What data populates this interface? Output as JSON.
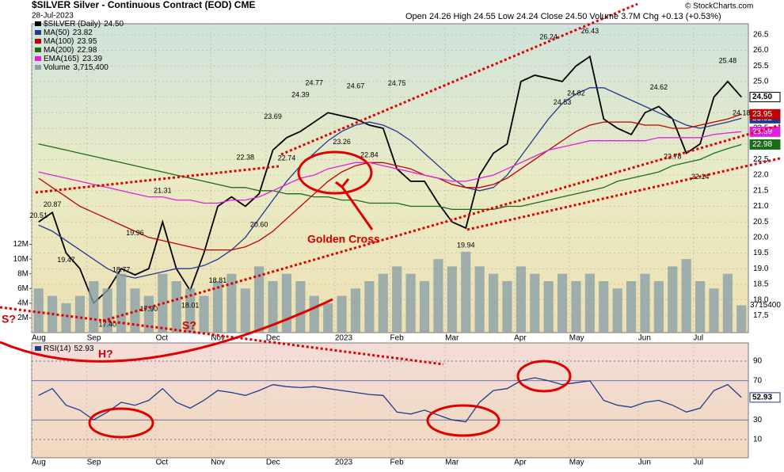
{
  "header": {
    "title": "$SILVER Silver - Continuous Contract (EOD) CME",
    "date": "28-Jul-2023",
    "ohlc": "Open 24.26 High 24.55 Low 24.24 Close 24.50 Volume 3.7M Chg +0.13 (+0.53%)",
    "source": "© StockCharts.com"
  },
  "annotations": [
    "Golden Cross",
    "S?",
    "S?",
    "H?"
  ],
  "chart_data": [
    {
      "type": "line",
      "categories": [
        "Aug",
        null,
        null,
        null,
        "Sep",
        null,
        null,
        null,
        null,
        "Oct",
        null,
        null,
        null,
        "Nov",
        null,
        null,
        null,
        "Dec",
        null,
        null,
        null,
        null,
        "2023",
        null,
        null,
        null,
        "Feb",
        null,
        null,
        null,
        "Mar",
        null,
        null,
        null,
        null,
        "Apr",
        null,
        null,
        null,
        "May",
        null,
        null,
        null,
        null,
        "Jun",
        null,
        null,
        null,
        "Jul",
        null,
        null,
        null
      ],
      "ylim": [
        16.95,
        26.85
      ],
      "yticks": [
        17.5,
        {
          "value": 18,
          "label": "18.0"
        },
        18.5,
        {
          "value": 19,
          "label": "19.0"
        },
        19.5,
        {
          "value": 20,
          "label": "20.0"
        },
        20.5,
        {
          "value": 21,
          "label": "21.0"
        },
        21.5,
        {
          "value": 22,
          "label": "22.0"
        },
        22.5,
        {
          "value": 23,
          "label": "23.0"
        },
        23.5,
        {
          "value": 24,
          "label": "24.0"
        },
        24.5,
        {
          "value": 25,
          "label": "25.0"
        },
        25.5,
        {
          "value": 26,
          "label": "26.0"
        },
        26.5
      ],
      "y2lim": [
        0,
        42000000
      ],
      "y2ticks": [
        {
          "value": 2000000,
          "label": "2M"
        },
        {
          "value": 4000000,
          "label": "4M"
        },
        {
          "value": 6000000,
          "label": "6M"
        },
        {
          "value": 8000000,
          "label": "8M"
        },
        {
          "value": 10000000,
          "label": "10M"
        },
        {
          "value": 12000000,
          "label": "12M"
        }
      ],
      "grid": true,
      "series": [
        {
          "name": "$SILVER (Daily)",
          "color": "#000000",
          "values": [
            20.5,
            20.8,
            19.5,
            19.0,
            17.9,
            18.3,
            19.0,
            18.8,
            19.0,
            20.5,
            19.0,
            18.3,
            19.5,
            21.0,
            21.3,
            21.0,
            21.4,
            22.8,
            23.2,
            23.4,
            23.7,
            24.0,
            23.9,
            23.8,
            23.6,
            23.5,
            22.2,
            21.8,
            21.8,
            21.1,
            20.5,
            20.3,
            22.0,
            22.7,
            23.0,
            25.0,
            25.2,
            25.1,
            25.0,
            25.5,
            25.8,
            23.8,
            23.5,
            23.3,
            24.0,
            24.2,
            23.8,
            22.7,
            23.0,
            24.5,
            25.0,
            24.5
          ],
          "value_labels": [
            null,
            null,
            null,
            null,
            null,
            null,
            null,
            null,
            null,
            null,
            null,
            null,
            null,
            null,
            null,
            null,
            null,
            null,
            null,
            null,
            null,
            null,
            null,
            null,
            null,
            null,
            null,
            null,
            null,
            null,
            null,
            null,
            null,
            null,
            null,
            null,
            null,
            null,
            null,
            null,
            null,
            null,
            null,
            null,
            null,
            null,
            null,
            null,
            null,
            null,
            null,
            "24.50"
          ]
        },
        {
          "name": "MA(50)",
          "color": "#1f3a8f",
          "values": [
            20.4,
            20.2,
            19.9,
            19.6,
            19.3,
            19.0,
            18.8,
            18.7,
            18.8,
            18.9,
            19.0,
            19.0,
            19.1,
            19.3,
            19.6,
            20.0,
            20.6,
            21.2,
            21.8,
            22.3,
            22.7,
            23.1,
            23.4,
            23.6,
            23.7,
            23.6,
            23.4,
            23.1,
            22.7,
            22.3,
            21.9,
            21.6,
            21.5,
            21.6,
            22.0,
            22.6,
            23.2,
            23.8,
            24.3,
            24.6,
            24.8,
            24.8,
            24.6,
            24.4,
            24.2,
            24.0,
            23.8,
            23.6,
            23.5,
            23.6,
            23.7,
            23.82
          ]
        },
        {
          "name": "MA(100)",
          "color": "#c00000",
          "values": [
            21.9,
            21.6,
            21.3,
            21.0,
            20.8,
            20.6,
            20.4,
            20.2,
            20.0,
            19.9,
            19.8,
            19.7,
            19.6,
            19.6,
            19.6,
            19.7,
            19.9,
            20.2,
            20.6,
            21.0,
            21.4,
            21.8,
            22.1,
            22.3,
            22.4,
            22.4,
            22.3,
            22.2,
            22.0,
            21.9,
            21.7,
            21.6,
            21.6,
            21.7,
            21.9,
            22.2,
            22.5,
            22.8,
            23.1,
            23.4,
            23.6,
            23.7,
            23.7,
            23.7,
            23.6,
            23.6,
            23.5,
            23.5,
            23.6,
            23.7,
            23.8,
            23.95
          ]
        },
        {
          "name": "MA(200)",
          "color": "#1a6e1a",
          "values": [
            23.0,
            22.9,
            22.8,
            22.7,
            22.6,
            22.5,
            22.4,
            22.3,
            22.2,
            22.1,
            22.0,
            21.9,
            21.8,
            21.7,
            21.6,
            21.6,
            21.5,
            21.5,
            21.4,
            21.4,
            21.3,
            21.3,
            21.2,
            21.2,
            21.1,
            21.1,
            21.1,
            21.0,
            21.0,
            21.0,
            20.9,
            20.9,
            20.9,
            20.9,
            21.0,
            21.0,
            21.1,
            21.2,
            21.3,
            21.4,
            21.5,
            21.6,
            21.8,
            21.9,
            22.0,
            22.1,
            22.3,
            22.4,
            22.5,
            22.7,
            22.85,
            22.98
          ]
        },
        {
          "name": "EMA(165)",
          "color": "#e020e0",
          "values": [
            22.1,
            22.0,
            21.9,
            21.8,
            21.7,
            21.6,
            21.5,
            21.4,
            21.3,
            21.3,
            21.2,
            21.2,
            21.1,
            21.1,
            21.2,
            21.2,
            21.3,
            21.5,
            21.7,
            21.9,
            22.0,
            22.2,
            22.3,
            22.4,
            22.4,
            22.3,
            22.2,
            22.1,
            22.0,
            21.9,
            21.8,
            21.8,
            21.9,
            22.0,
            22.2,
            22.4,
            22.6,
            22.8,
            22.9,
            23.0,
            23.1,
            23.1,
            23.1,
            23.1,
            23.1,
            23.2,
            23.2,
            23.2,
            23.2,
            23.3,
            23.35,
            23.39
          ]
        },
        {
          "name": "Volume",
          "color": "#8aa0a8",
          "axis": "y2",
          "type": "bar",
          "values": [
            6000000,
            5000000,
            4000000,
            5000000,
            7000000,
            6000000,
            8000000,
            6000000,
            5000000,
            8000000,
            7000000,
            6000000,
            5000000,
            7000000,
            8000000,
            6000000,
            9000000,
            7000000,
            8000000,
            7000000,
            5000000,
            4000000,
            5000000,
            6000000,
            7000000,
            8000000,
            9000000,
            8000000,
            7000000,
            10000000,
            9000000,
            11000000,
            9000000,
            8000000,
            7000000,
            9000000,
            8000000,
            7000000,
            8000000,
            7000000,
            8000000,
            7000000,
            6000000,
            7000000,
            8000000,
            7000000,
            9000000,
            10000000,
            7000000,
            6000000,
            8000000,
            3715400
          ],
          "value_labels": [
            null,
            null,
            null,
            null,
            null,
            null,
            null,
            null,
            null,
            null,
            null,
            null,
            null,
            null,
            null,
            null,
            null,
            null,
            null,
            null,
            null,
            null,
            null,
            null,
            null,
            null,
            null,
            null,
            null,
            null,
            null,
            null,
            null,
            null,
            null,
            null,
            null,
            null,
            null,
            null,
            null,
            null,
            null,
            null,
            null,
            null,
            null,
            null,
            null,
            null,
            null,
            "3,715,400"
          ]
        }
      ],
      "high_labels": {
        "values": [
          20.51,
          20.87,
          null,
          null,
          null,
          null,
          18.77,
          19.96,
          null,
          21.31,
          null,
          null,
          null,
          null,
          null,
          22.38,
          null,
          23.69,
          null,
          24.39,
          24.77,
          null,
          null,
          24.67,
          null,
          null,
          24.75,
          null,
          null,
          null,
          null,
          null,
          null,
          null,
          null,
          null,
          null,
          26.24,
          null,
          null,
          26.43,
          null,
          null,
          null,
          null,
          24.62,
          null,
          null,
          null,
          null,
          25.48,
          null
        ],
        "value_labels": [
          "20.51",
          "20.87",
          null,
          null,
          null,
          null,
          "18.77",
          "19.96",
          null,
          "21.31",
          null,
          null,
          null,
          null,
          null,
          "22.38",
          null,
          "23.69",
          null,
          "24.39",
          "24.77",
          null,
          null,
          "24.67",
          null,
          null,
          "24.75",
          null,
          null,
          null,
          null,
          null,
          null,
          null,
          null,
          null,
          null,
          "26.24",
          null,
          null,
          "26.43",
          null,
          null,
          null,
          null,
          "24.62",
          null,
          null,
          null,
          null,
          "25.48",
          null
        ]
      },
      "low_labels": {
        "values": [
          null,
          null,
          19.47,
          null,
          null,
          17.4,
          null,
          null,
          17.9,
          null,
          null,
          18.01,
          null,
          18.81,
          null,
          null,
          20.6,
          null,
          22.74,
          null,
          null,
          null,
          23.26,
          null,
          22.84,
          null,
          null,
          null,
          null,
          null,
          null,
          19.94,
          null,
          null,
          null,
          null,
          null,
          null,
          24.53,
          24.82,
          null,
          null,
          null,
          null,
          null,
          null,
          22.78,
          null,
          22.14,
          null,
          null,
          24.18
        ],
        "value_labels": [
          null,
          null,
          "19.47",
          null,
          null,
          "17.40",
          null,
          null,
          "17.90",
          null,
          null,
          "18.01",
          null,
          "18.81",
          null,
          null,
          "20.60",
          null,
          "22.74",
          null,
          null,
          null,
          "23.26",
          null,
          "22.84",
          null,
          null,
          null,
          null,
          null,
          null,
          "19.94",
          null,
          null,
          null,
          null,
          null,
          null,
          "24.53",
          "24.82",
          null,
          null,
          null,
          null,
          null,
          null,
          "22.78",
          null,
          "22.14",
          null,
          null,
          "24.18"
        ]
      }
    },
    {
      "type": "line",
      "categories": [
        "Aug",
        null,
        null,
        null,
        "Sep",
        null,
        null,
        null,
        null,
        "Oct",
        null,
        null,
        null,
        "Nov",
        null,
        null,
        null,
        "Dec",
        null,
        null,
        null,
        null,
        "2023",
        null,
        null,
        null,
        "Feb",
        null,
        null,
        null,
        "Mar",
        null,
        null,
        null,
        null,
        "Apr",
        null,
        null,
        null,
        "May",
        null,
        null,
        null,
        null,
        "Jun",
        null,
        null,
        null,
        "Jul",
        null,
        null,
        null
      ],
      "ylim": [
        -8.6,
        108.6
      ],
      "yticks": [
        10,
        30,
        70,
        90
      ],
      "grid": true,
      "series": [
        {
          "name": "RSI(14)",
          "color": "#1f3a8f",
          "values": [
            55,
            62,
            45,
            40,
            30,
            38,
            48,
            45,
            50,
            62,
            48,
            42,
            50,
            60,
            58,
            55,
            60,
            66,
            64,
            63,
            64,
            62,
            60,
            58,
            56,
            55,
            38,
            36,
            40,
            35,
            30,
            28,
            48,
            60,
            62,
            70,
            73,
            70,
            66,
            68,
            70,
            50,
            45,
            43,
            48,
            50,
            45,
            38,
            42,
            60,
            66,
            52.93
          ]
        }
      ]
    }
  ]
}
